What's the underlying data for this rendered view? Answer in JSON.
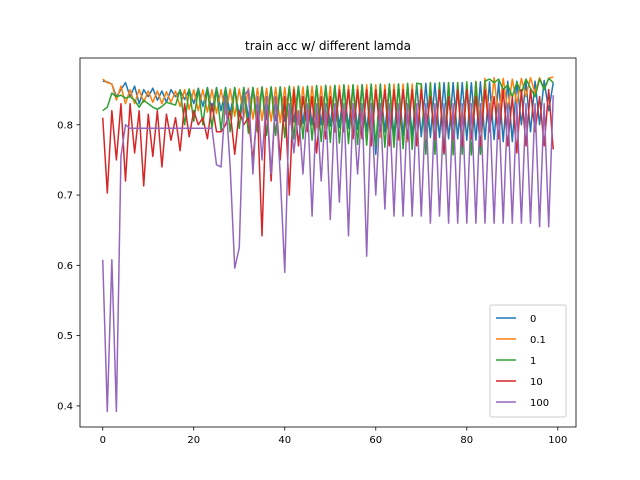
{
  "chart_data": {
    "type": "line",
    "title": "train acc w/ different lamda",
    "xlabel": "",
    "ylabel": "",
    "xlim": [
      -5,
      104
    ],
    "ylim": [
      0.37,
      0.895
    ],
    "xticks": [
      0,
      20,
      40,
      60,
      80,
      100
    ],
    "yticks": [
      0.4,
      0.5,
      0.6,
      0.7,
      0.8
    ],
    "ytick_labels": [
      "0.4",
      "0.5",
      "0.6",
      "0.7",
      "0.8"
    ],
    "legend_position": "lower-right",
    "series": [
      {
        "name": "0",
        "color": "#1f77b4",
        "x_start": 0,
        "x_end": 99,
        "values": [
          0.862,
          0.861,
          0.858,
          0.84,
          0.85,
          0.86,
          0.84,
          0.855,
          0.83,
          0.85,
          0.84,
          0.852,
          0.835,
          0.848,
          0.832,
          0.85,
          0.84,
          0.848,
          0.836,
          0.85,
          0.83,
          0.852,
          0.826,
          0.853,
          0.82,
          0.853,
          0.82,
          0.853,
          0.815,
          0.853,
          0.812,
          0.853,
          0.81,
          0.853,
          0.81,
          0.853,
          0.808,
          0.854,
          0.806,
          0.854,
          0.805,
          0.854,
          0.804,
          0.855,
          0.802,
          0.855,
          0.8,
          0.855,
          0.8,
          0.856,
          0.798,
          0.856,
          0.796,
          0.856,
          0.795,
          0.856,
          0.793,
          0.857,
          0.79,
          0.857,
          0.758,
          0.857,
          0.79,
          0.858,
          0.785,
          0.858,
          0.785,
          0.858,
          0.784,
          0.858,
          0.783,
          0.859,
          0.782,
          0.859,
          0.782,
          0.86,
          0.78,
          0.86,
          0.78,
          0.86,
          0.778,
          0.86,
          0.778,
          0.861,
          0.779,
          0.861,
          0.779,
          0.861,
          0.776,
          0.862,
          0.776,
          0.862,
          0.8,
          0.862,
          0.79,
          0.862,
          0.8,
          0.863,
          0.82,
          0.86
        ]
      },
      {
        "name": "0.1",
        "color": "#ff7f0e",
        "x_start": 0,
        "x_end": 99,
        "values": [
          0.865,
          0.86,
          0.858,
          0.835,
          0.855,
          0.83,
          0.85,
          0.83,
          0.85,
          0.832,
          0.848,
          0.832,
          0.848,
          0.83,
          0.847,
          0.832,
          0.848,
          0.826,
          0.85,
          0.822,
          0.85,
          0.82,
          0.85,
          0.818,
          0.85,
          0.816,
          0.85,
          0.815,
          0.851,
          0.812,
          0.851,
          0.81,
          0.852,
          0.808,
          0.852,
          0.806,
          0.852,
          0.805,
          0.853,
          0.803,
          0.853,
          0.8,
          0.854,
          0.8,
          0.854,
          0.798,
          0.855,
          0.796,
          0.855,
          0.795,
          0.855,
          0.79,
          0.856,
          0.79,
          0.856,
          0.788,
          0.856,
          0.785,
          0.857,
          0.785,
          0.857,
          0.782,
          0.857,
          0.78,
          0.858,
          0.778,
          0.858,
          0.776,
          0.858,
          0.775,
          0.858,
          0.772,
          0.859,
          0.77,
          0.859,
          0.768,
          0.86,
          0.775,
          0.86,
          0.778,
          0.86,
          0.78,
          0.862,
          0.79,
          0.866,
          0.8,
          0.867,
          0.81,
          0.866,
          0.82,
          0.865,
          0.83,
          0.866,
          0.84,
          0.867,
          0.845,
          0.867,
          0.85,
          0.866,
          0.868
        ]
      },
      {
        "name": "1",
        "color": "#2ca02c",
        "x_start": 0,
        "x_end": 99,
        "values": [
          0.82,
          0.825,
          0.845,
          0.84,
          0.842,
          0.838,
          0.84,
          0.835,
          0.825,
          0.835,
          0.83,
          0.825,
          0.822,
          0.826,
          0.832,
          0.83,
          0.828,
          0.85,
          0.8,
          0.851,
          0.805,
          0.851,
          0.8,
          0.852,
          0.795,
          0.852,
          0.792,
          0.852,
          0.79,
          0.853,
          0.795,
          0.853,
          0.788,
          0.853,
          0.79,
          0.854,
          0.785,
          0.854,
          0.785,
          0.854,
          0.782,
          0.855,
          0.78,
          0.855,
          0.78,
          0.855,
          0.778,
          0.856,
          0.776,
          0.856,
          0.775,
          0.856,
          0.774,
          0.857,
          0.773,
          0.857,
          0.772,
          0.857,
          0.771,
          0.858,
          0.77,
          0.858,
          0.768,
          0.858,
          0.768,
          0.858,
          0.766,
          0.859,
          0.765,
          0.859,
          0.858,
          0.758,
          0.86,
          0.758,
          0.86,
          0.758,
          0.86,
          0.757,
          0.86,
          0.758,
          0.861,
          0.757,
          0.861,
          0.758,
          0.862,
          0.865,
          0.86,
          0.865,
          0.85,
          0.857,
          0.84,
          0.86,
          0.845,
          0.865,
          0.852,
          0.84,
          0.865,
          0.85,
          0.866,
          0.86
        ]
      },
      {
        "name": "10",
        "color": "#d62728",
        "x_start": 0,
        "x_end": 99,
        "values": [
          0.81,
          0.703,
          0.82,
          0.75,
          0.83,
          0.72,
          0.83,
          0.76,
          0.82,
          0.713,
          0.815,
          0.755,
          0.82,
          0.74,
          0.815,
          0.778,
          0.81,
          0.763,
          0.83,
          0.783,
          0.82,
          0.8,
          0.81,
          0.78,
          0.83,
          0.79,
          0.79,
          0.8,
          0.82,
          0.758,
          0.82,
          0.8,
          0.81,
          0.75,
          0.82,
          0.642,
          0.84,
          0.72,
          0.84,
          0.75,
          0.84,
          0.7,
          0.85,
          0.77,
          0.84,
          0.79,
          0.84,
          0.76,
          0.84,
          0.78,
          0.84,
          0.79,
          0.85,
          0.79,
          0.85,
          0.78,
          0.85,
          0.78,
          0.85,
          0.77,
          0.85,
          0.79,
          0.85,
          0.77,
          0.85,
          0.78,
          0.85,
          0.78,
          0.85,
          0.77,
          0.85,
          0.79,
          0.84,
          0.78,
          0.85,
          0.76,
          0.84,
          0.78,
          0.85,
          0.77,
          0.85,
          0.78,
          0.84,
          0.77,
          0.85,
          0.79,
          0.84,
          0.78,
          0.85,
          0.77,
          0.84,
          0.76,
          0.85,
          0.77,
          0.85,
          0.79,
          0.84,
          0.77,
          0.85,
          0.765
        ]
      },
      {
        "name": "100",
        "color": "#9467bd",
        "x_start": 0,
        "x_end": 99,
        "values": [
          0.608,
          0.392,
          0.608,
          0.392,
          0.755,
          0.8,
          0.795,
          0.795,
          0.795,
          0.795,
          0.795,
          0.795,
          0.795,
          0.795,
          0.795,
          0.795,
          0.795,
          0.795,
          0.795,
          0.795,
          0.795,
          0.795,
          0.795,
          0.795,
          0.795,
          0.743,
          0.74,
          0.84,
          0.74,
          0.596,
          0.625,
          0.84,
          0.85,
          0.73,
          0.84,
          0.75,
          0.84,
          0.73,
          0.84,
          0.73,
          0.59,
          0.83,
          0.76,
          0.82,
          0.73,
          0.83,
          0.67,
          0.83,
          0.72,
          0.83,
          0.665,
          0.83,
          0.69,
          0.83,
          0.642,
          0.83,
          0.73,
          0.83,
          0.613,
          0.83,
          0.7,
          0.83,
          0.68,
          0.83,
          0.67,
          0.83,
          0.67,
          0.83,
          0.67,
          0.83,
          0.67,
          0.83,
          0.66,
          0.83,
          0.67,
          0.83,
          0.66,
          0.83,
          0.66,
          0.83,
          0.66,
          0.83,
          0.66,
          0.83,
          0.66,
          0.83,
          0.66,
          0.83,
          0.66,
          0.83,
          0.66,
          0.83,
          0.66,
          0.83,
          0.66,
          0.83,
          0.655,
          0.83,
          0.655,
          0.842
        ]
      }
    ]
  }
}
